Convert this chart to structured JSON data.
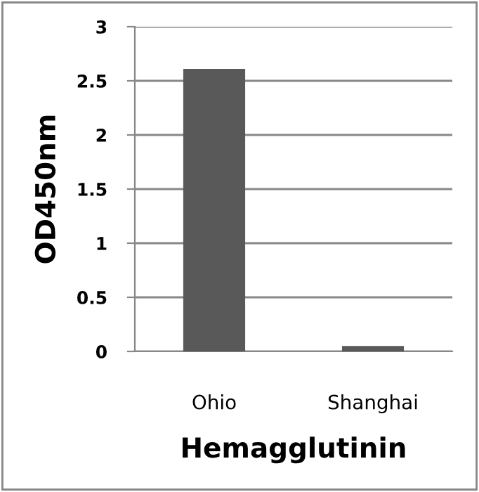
{
  "chart_data": {
    "type": "bar",
    "xlabel": "Hemagglutinin",
    "ylabel": "OD450nm",
    "categories": [
      "Ohio",
      "Shanghai"
    ],
    "series": [
      {
        "color": "#595959",
        "values": [
          2.61,
          0.05
        ]
      }
    ],
    "ylim": [
      0,
      3
    ],
    "yticks": [
      0,
      0.5,
      1,
      1.5,
      2,
      2.5,
      3
    ],
    "grid": "y",
    "legend": false
  }
}
